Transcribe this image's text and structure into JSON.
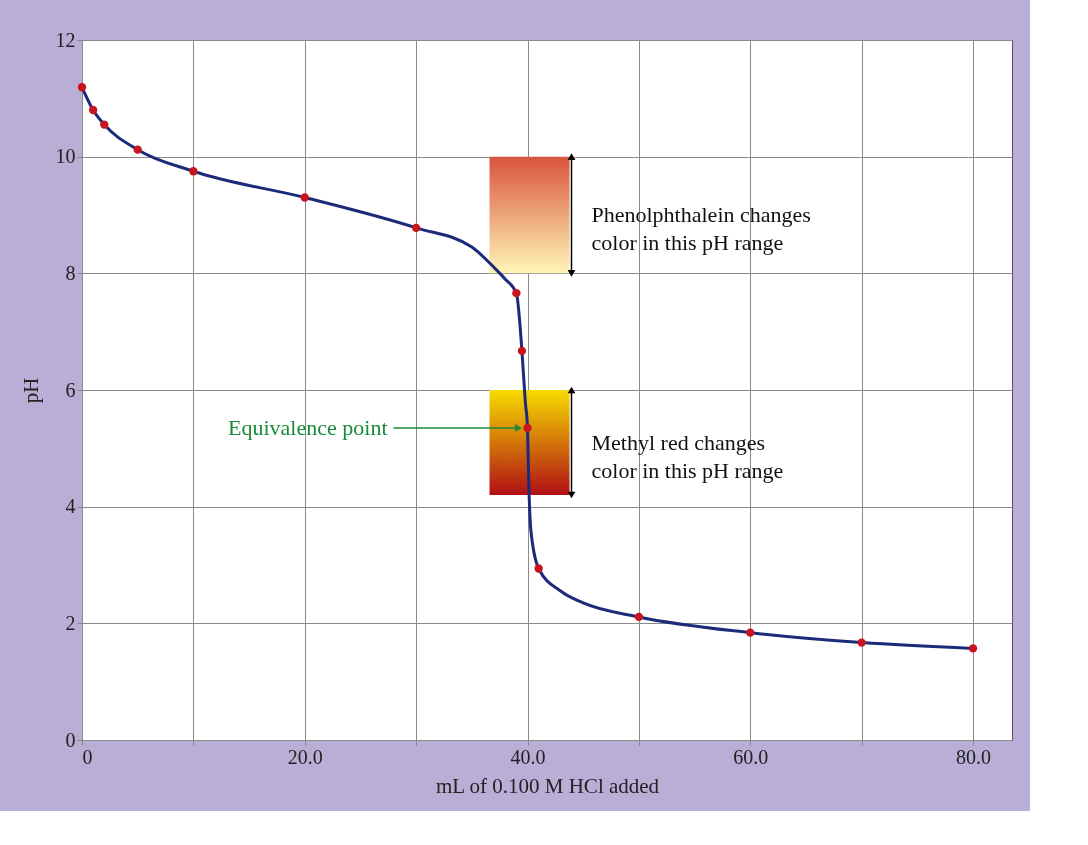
{
  "chart_data": {
    "type": "line",
    "xlabel": "mL of 0.100 M HCl added",
    "ylabel": "pH",
    "xlim": [
      0,
      83.5
    ],
    "ylim": [
      0,
      12
    ],
    "xticks": [
      0,
      {
        "value": 10,
        "label": null
      },
      {
        "value": 20,
        "label": "20.0"
      },
      {
        "value": 30,
        "label": null
      },
      {
        "value": 40,
        "label": "40.0"
      },
      {
        "value": 50,
        "label": null
      },
      {
        "value": 60,
        "label": "60.0"
      },
      {
        "value": 70,
        "label": null
      },
      {
        "value": 80,
        "label": "80.0"
      }
    ],
    "yticks": [
      0,
      2,
      4,
      6,
      8,
      10,
      12
    ],
    "grid": true,
    "series": [
      {
        "type": "line",
        "color": "#1c2a7a",
        "marker": "none",
        "line_style": "solid",
        "x": [
          0,
          1,
          2,
          5,
          10,
          20,
          30,
          35,
          37,
          38,
          39,
          39.5,
          39.8,
          40,
          40.1,
          40.3,
          41,
          43,
          45,
          50,
          60,
          70,
          80
        ],
        "values": [
          11.19,
          10.8,
          10.55,
          10.12,
          9.75,
          9.3,
          8.78,
          8.45,
          8.1,
          7.9,
          7.66,
          6.67,
          5.8,
          5.35,
          4.5,
          3.6,
          2.94,
          2.55,
          2.35,
          2.11,
          1.84,
          1.67,
          1.57
        ]
      },
      {
        "type": "scatter",
        "color": "#c8141e",
        "marker": "circle",
        "x": [
          0,
          1,
          2,
          5,
          10,
          20,
          30,
          39,
          39.5,
          40,
          41,
          50,
          60,
          70,
          80
        ],
        "values": [
          11.19,
          10.8,
          10.55,
          10.12,
          9.75,
          9.3,
          8.78,
          7.66,
          6.67,
          5.35,
          2.94,
          2.11,
          1.84,
          1.67,
          1.57
        ]
      }
    ],
    "bands": [
      {
        "axis": "y",
        "from": 8,
        "to": 10,
        "label": "Phenolphthalein changes\ncolor in this pH range",
        "color": [
          "#d9543a",
          "#fff6b8"
        ]
      },
      {
        "axis": "y",
        "from": 4.2,
        "to": 6,
        "label": "Methyl red changes\ncolor in this pH range",
        "color": [
          "#f7dc00",
          "#b00f14"
        ]
      }
    ],
    "annotations": [
      {
        "text": "Equivalence point",
        "x": 40,
        "y": 5.35
      }
    ]
  }
}
